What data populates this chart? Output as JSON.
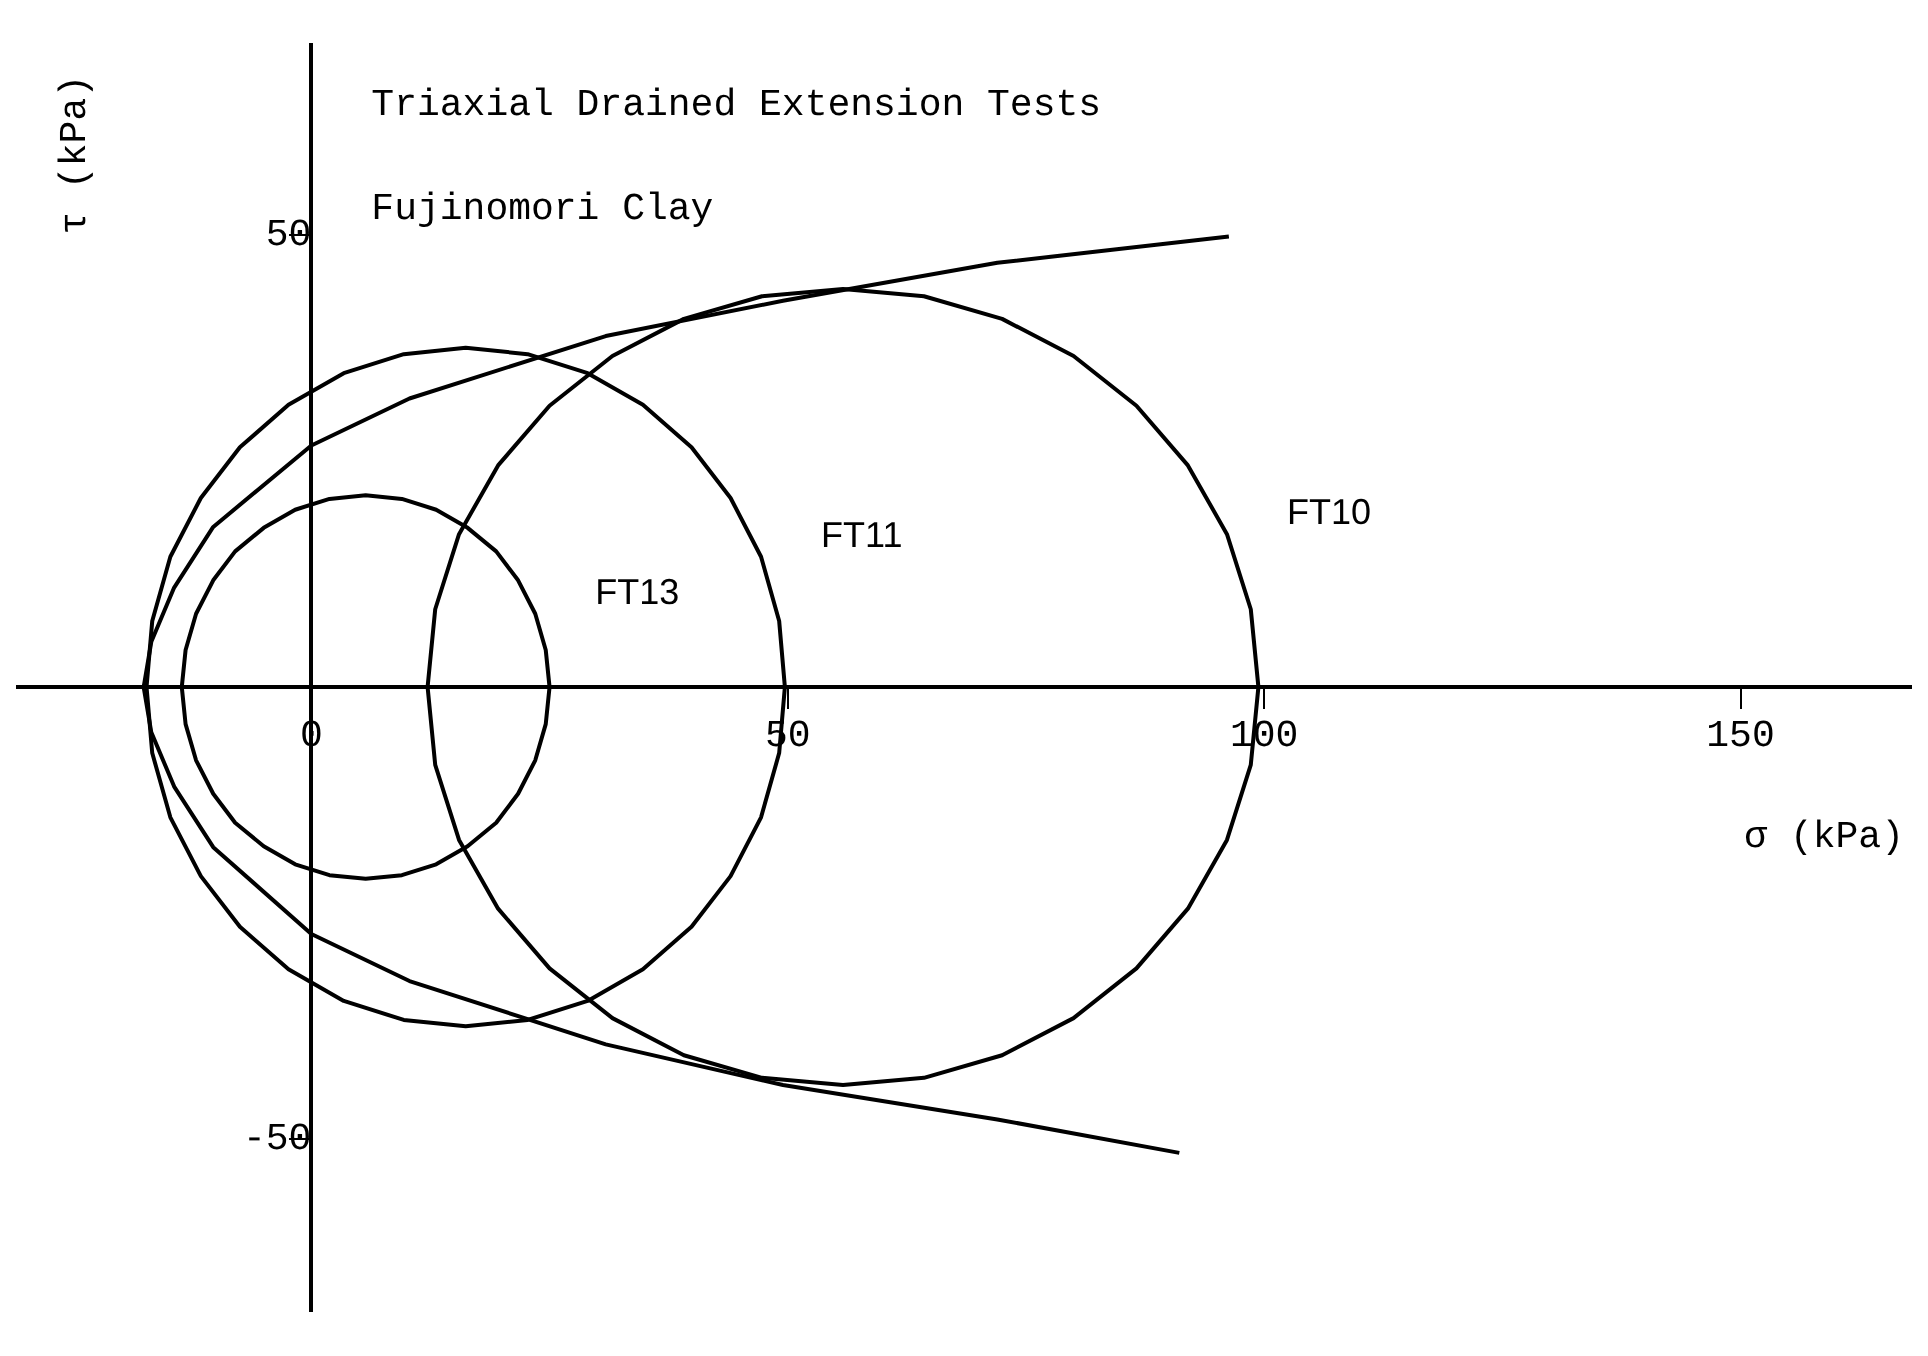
{
  "chart_data": {
    "type": "line",
    "title": "Triaxial Drained Extension Tests",
    "subtitle": "Fujinomori Clay",
    "xlabel": "σ (kPa)",
    "ylabel": "τ (kPa)",
    "xlim": [
      -31,
      168
    ],
    "ylim": [
      -69,
      71
    ],
    "xticks": [
      0,
      50,
      100,
      150
    ],
    "yticks": [
      -50,
      50
    ],
    "grid": false,
    "legend": false,
    "marker": "none",
    "line_style": "solid",
    "series": [
      {
        "color": "#000000",
        "x": [
          96.3,
          72,
          49.5,
          30.9,
          10.3,
          0,
          -10.3,
          -14.4,
          -16.8,
          -17.6,
          -16.8,
          -14.4,
          -10.3,
          0,
          10.3,
          30.9,
          49.5,
          72,
          91.1
        ],
        "values": [
          49.8,
          46.9,
          42.7,
          38.8,
          31.9,
          26.7,
          17.7,
          11,
          5,
          0,
          -5,
          -11,
          -17.7,
          -27.3,
          -32.5,
          -39.5,
          -44,
          -47.8,
          -51.5
        ]
      },
      {
        "name": "FT13",
        "color": "#000000",
        "x": [
          -13.6,
          -13.2,
          -12.1,
          -10.3,
          -8.0,
          -5.0,
          -1.7,
          1.9,
          5.7,
          9.5,
          13.1,
          16.4,
          19.4,
          21.7,
          23.5,
          24.6,
          25.0,
          null,
          25.0,
          24.6,
          23.5,
          21.7,
          19.4,
          16.4,
          13.1,
          9.5,
          5.7,
          1.9,
          -1.7,
          -5.0,
          -8.0,
          -10.3,
          -12.1,
          -13.2,
          -13.6
        ],
        "values": [
          0,
          4.1,
          8.1,
          11.8,
          15.0,
          17.6,
          19.6,
          20.8,
          21.2,
          20.8,
          19.6,
          17.6,
          15.0,
          11.8,
          8.1,
          4.1,
          0,
          null,
          0,
          -4.1,
          -8.1,
          -11.8,
          -15.0,
          -17.6,
          -19.6,
          -20.8,
          -21.2,
          -20.8,
          -19.6,
          -17.6,
          -15.0,
          -11.8,
          -8.1,
          -4.1,
          0
        ]
      },
      {
        "name": "FT11",
        "color": "#000000",
        "x": [
          -17.3,
          -16.7,
          -14.8,
          -11.6,
          -7.5,
          -2.4,
          3.4,
          9.7,
          16.2,
          22.7,
          29.0,
          34.8,
          39.9,
          44.0,
          47.2,
          49.1,
          49.7,
          null,
          49.7,
          49.1,
          47.2,
          44.0,
          39.9,
          34.8,
          29.0,
          22.7,
          16.2,
          9.7,
          3.4,
          -2.4,
          -7.5,
          -11.6,
          -14.8,
          -16.7,
          -17.3
        ],
        "values": [
          0,
          7.3,
          14.4,
          20.9,
          26.5,
          31.2,
          34.7,
          36.8,
          37.5,
          36.8,
          34.7,
          31.2,
          26.5,
          20.9,
          14.4,
          7.3,
          0,
          null,
          0,
          -7.3,
          -14.4,
          -20.9,
          -26.5,
          -31.2,
          -34.7,
          -36.8,
          -37.5,
          -36.8,
          -34.7,
          -31.2,
          -26.5,
          -20.9,
          -14.4,
          -7.3,
          0
        ]
      },
      {
        "name": "FT10",
        "color": "#000000",
        "x": [
          12.2,
          13.0,
          15.5,
          19.6,
          25.0,
          31.6,
          39.1,
          47.3,
          55.8,
          64.3,
          72.5,
          80.0,
          86.6,
          92.0,
          96.1,
          98.6,
          99.4,
          null,
          99.4,
          98.6,
          96.1,
          92.0,
          86.6,
          80.0,
          72.5,
          64.3,
          55.8,
          47.3,
          39.1,
          31.6,
          25.0,
          19.6,
          15.5,
          13.0,
          12.2
        ],
        "values": [
          0,
          8.6,
          16.9,
          24.5,
          31.1,
          36.6,
          40.7,
          43.2,
          44,
          43.2,
          40.7,
          36.6,
          31.1,
          24.5,
          16.9,
          8.6,
          0,
          null,
          0,
          -8.6,
          -16.9,
          -24.5,
          -31.1,
          -36.6,
          -40.7,
          -43.2,
          -44,
          -43.2,
          -40.7,
          -36.6,
          -31.1,
          -24.5,
          -16.9,
          -8.6,
          0
        ]
      }
    ]
  }
}
